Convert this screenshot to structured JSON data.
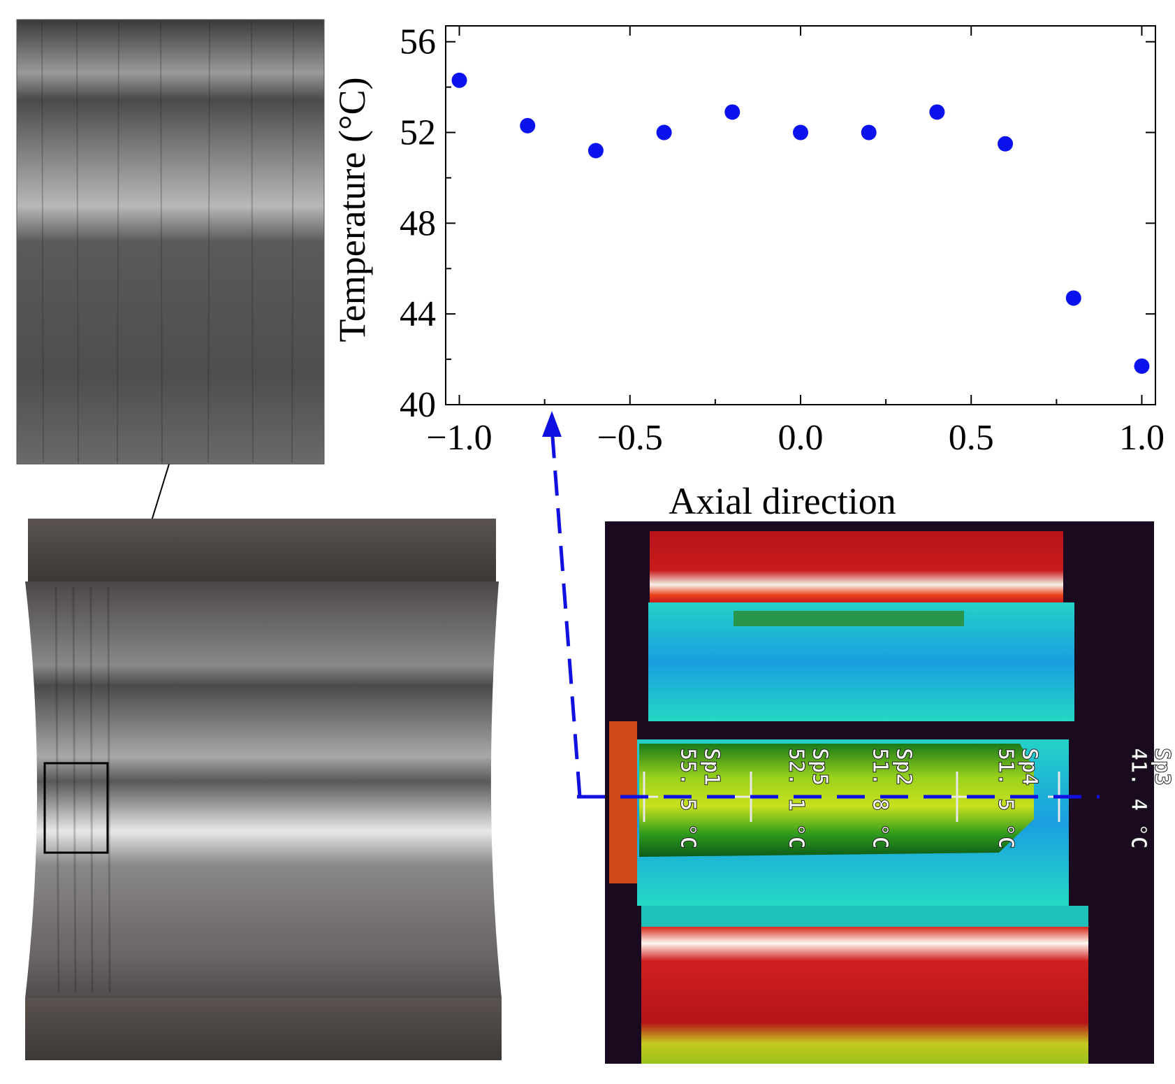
{
  "chart_data": {
    "type": "scatter",
    "xlabel": "Axial direction",
    "ylabel": "Temperature (°C)",
    "xlim": [
      -1.04,
      1.04
    ],
    "ylim": [
      40,
      56.7
    ],
    "xticks": [
      -1.0,
      -0.5,
      0.0,
      0.5,
      1.0
    ],
    "xtick_labels": [
      "−1.0",
      "−0.5",
      "0.0",
      "0.5",
      "1.0"
    ],
    "yticks": [
      40,
      44,
      48,
      52,
      56
    ],
    "ytick_labels": [
      "40",
      "44",
      "48",
      "52",
      "56"
    ],
    "grid": false,
    "legend": "none",
    "marker_color": "#0a12ee",
    "series": [
      {
        "x": [
          -1.0,
          -0.8,
          -0.6,
          -0.4,
          -0.2,
          0.0,
          0.2,
          0.4,
          0.6,
          0.8,
          1.0
        ],
        "y": [
          54.3,
          52.3,
          51.2,
          52.0,
          52.9,
          52.0,
          52.0,
          52.9,
          51.5,
          44.7,
          41.7
        ]
      }
    ]
  },
  "thermal_labels": [
    {
      "name": "Sp1",
      "temp": "55. 5 °C"
    },
    {
      "name": "Sp5",
      "temp": "52. 1 °C"
    },
    {
      "name": "Sp2",
      "temp": "51. 8 °C"
    },
    {
      "name": "Sp4",
      "temp": "51. 5 °C"
    },
    {
      "name": "Sp3",
      "temp": "41. 4 °C"
    }
  ],
  "colors": {
    "thermal_hot": "#c8141e",
    "thermal_warm": "#2e8b1e",
    "thermal_cool": "#18c6d4",
    "arrow": "#1010e0"
  }
}
